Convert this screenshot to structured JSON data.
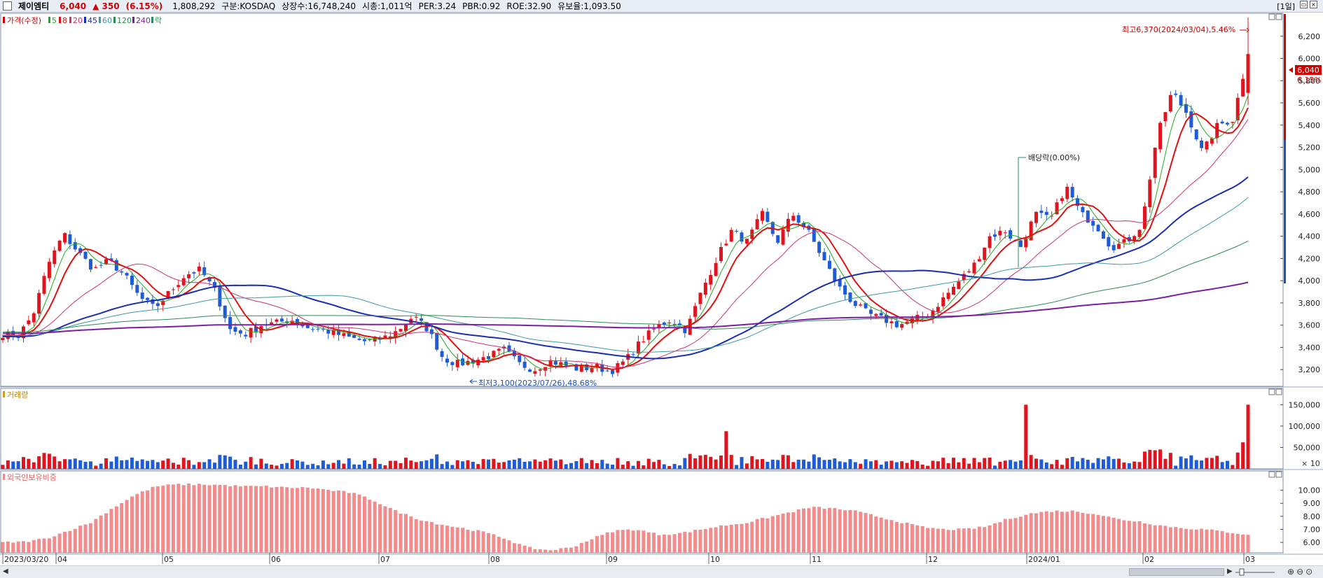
{
  "header": {
    "stock_name": "제이엠티",
    "price": "6,040",
    "change": "▲ 350",
    "change_pct": "(6.15%)",
    "volume": "1,808,292",
    "market": "구분:KOSDAQ",
    "shares": "상장수:16,748,240",
    "market_cap": "시총:1,011억",
    "per": "PER:3.24",
    "pbr": "PBR:0.92",
    "roe": "ROE:32.90",
    "reserve_ratio": "유보율:1,093.50",
    "period": "[1일]"
  },
  "colors": {
    "up": "#e0141e",
    "down": "#1e5bd6",
    "ma5": "#22aa22",
    "ma8": "#dd1111",
    "ma20": "#cc3377",
    "ma45": "#1a2fb0",
    "ma60": "#3a9aa0",
    "ma120": "#2e8b57",
    "ma240": "#7b1fa2",
    "foreign": "#f28b8b"
  },
  "legend": {
    "price_label": "가격(수정)",
    "ma": [
      "5",
      "8",
      "20",
      "45",
      "60",
      "120",
      "240"
    ],
    "ex_div": "락",
    "volume_label": "거래량",
    "foreign_label": "외국인보유비중"
  },
  "annotations": {
    "high": "최고6,370(2024/03/04),5.46%",
    "low": "최저3,100(2023/07/26),48.68%",
    "dividend": "배당락(0.00%)",
    "last_price_tag": "6,040",
    "last_pct_tag": "6.15%",
    "vol_unit": "× 10"
  },
  "chart_data": [
    {
      "type": "candlestick",
      "title": "제이엠티 일봉",
      "x_labels": [
        "2023/03/20",
        "04",
        "05",
        "06",
        "07",
        "08",
        "09",
        "10",
        "11",
        "12",
        "2024/01",
        "02",
        "03"
      ],
      "y_ticks": [
        "3,200",
        "3,400",
        "3,600",
        "3,800",
        "4,000",
        "4,200",
        "4,400",
        "4,600",
        "4,800",
        "5,000",
        "5,200",
        "5,400",
        "5,600",
        "5,800",
        "6,000",
        "6,200"
      ],
      "ylim": [
        3050,
        6400
      ],
      "high": 6370,
      "low": 3100,
      "last_close": 6040,
      "close_path": [
        3520,
        3500,
        3700,
        4150,
        4420,
        4250,
        4100,
        4180,
        4050,
        3850,
        3750,
        3900,
        4050,
        4100,
        3900,
        3550,
        3520,
        3600,
        3620,
        3650,
        3580,
        3560,
        3520,
        3480,
        3450,
        3480,
        3550,
        3680,
        3560,
        3300,
        3250,
        3280,
        3320,
        3380,
        3250,
        3200,
        3280,
        3240,
        3200,
        3230,
        3180,
        3280,
        3450,
        3580,
        3650,
        3550,
        3900,
        4200,
        4450,
        4350,
        4600,
        4350,
        4600,
        4450,
        4200,
        3950,
        3800,
        3700,
        3650,
        3600,
        3650,
        3700,
        3850,
        4000,
        4150,
        4400,
        4450,
        4300,
        4600,
        4550,
        4850,
        4600,
        4500,
        4300,
        4350,
        4500,
        5300,
        5700,
        5500,
        5150,
        5400,
        5450,
        6040
      ]
    },
    {
      "type": "bar",
      "title": "거래량",
      "y_ticks": [
        "50,000",
        "100,000",
        "150,000"
      ],
      "ylim": [
        0,
        180000
      ],
      "unit": "× 10"
    },
    {
      "type": "bar",
      "title": "외국인보유비중",
      "y_ticks": [
        "6.00",
        "7.00",
        "8.00",
        "9.00",
        "10.00"
      ],
      "ylim": [
        5.2,
        11
      ],
      "values_path": [
        6.0,
        6.05,
        6.3,
        6.9,
        7.5,
        8.6,
        9.6,
        10.3,
        10.45,
        10.45,
        10.4,
        10.3,
        10.3,
        10.2,
        10.2,
        10.0,
        9.8,
        9.2,
        8.4,
        7.8,
        7.4,
        7.1,
        6.8,
        6.3,
        5.6,
        5.4,
        5.6,
        6.3,
        6.9,
        7.0,
        6.6,
        6.7,
        7.0,
        7.3,
        7.5,
        7.9,
        8.3,
        8.7,
        8.6,
        8.4,
        8.0,
        7.6,
        7.2,
        7.0,
        7.0,
        7.2,
        7.8,
        8.2,
        8.4,
        8.4,
        8.2,
        7.8,
        7.6,
        7.3,
        7.1,
        7.0,
        6.8,
        6.6
      ]
    }
  ]
}
